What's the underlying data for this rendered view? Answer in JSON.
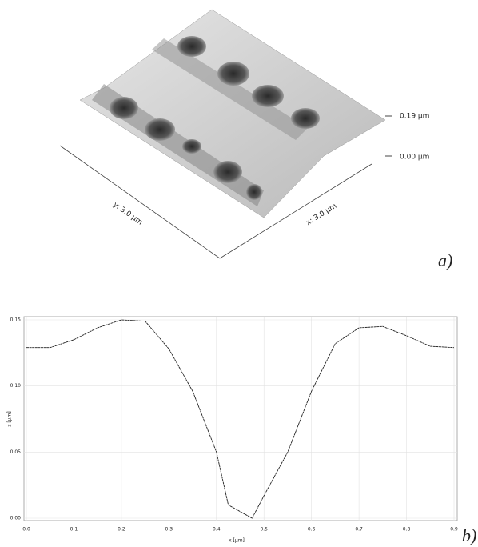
{
  "chart_data": [
    {
      "type": "surface",
      "zticks": [
        {
          "value": 0.19,
          "label": "0.19 µm"
        },
        {
          "value": 0,
          "label": "0.00 µm"
        }
      ],
      "xlabel": "x: 3.0 µm",
      "ylabel": "y: 3.0 µm",
      "panel_label": "a)"
    },
    {
      "type": "line",
      "xlabel": "x [µm]",
      "ylabel": "z [µm]",
      "panel_label": "b)",
      "color": "#222222",
      "grid": true,
      "x": [
        0,
        0.05,
        0.1,
        0.15,
        0.2,
        0.25,
        0.3,
        0.35,
        0.4,
        0.425,
        0.45,
        0.475,
        0.5,
        0.55,
        0.6,
        0.65,
        0.7,
        0.75,
        0.8,
        0.85,
        0.9
      ],
      "values": [
        0.129,
        0.129,
        0.135,
        0.144,
        0.15,
        0.149,
        0.128,
        0.096,
        0.05,
        0.01,
        0.005,
        0.0,
        0.017,
        0.05,
        0.096,
        0.132,
        0.144,
        0.145,
        0.138,
        0.13,
        0.129
      ],
      "xlim": [
        0,
        0.9
      ],
      "ylim": [
        0,
        0.15
      ],
      "xticks": [
        {
          "value": 0,
          "label": "0.0"
        },
        0.1,
        0.2,
        0.3,
        0.4,
        0.5,
        0.6,
        0.7,
        0.8,
        0.9
      ],
      "yticks": [
        {
          "value": 0,
          "label": "0.00"
        },
        0.05,
        {
          "value": 0.1,
          "label": "0.10"
        },
        0.15
      ]
    }
  ]
}
